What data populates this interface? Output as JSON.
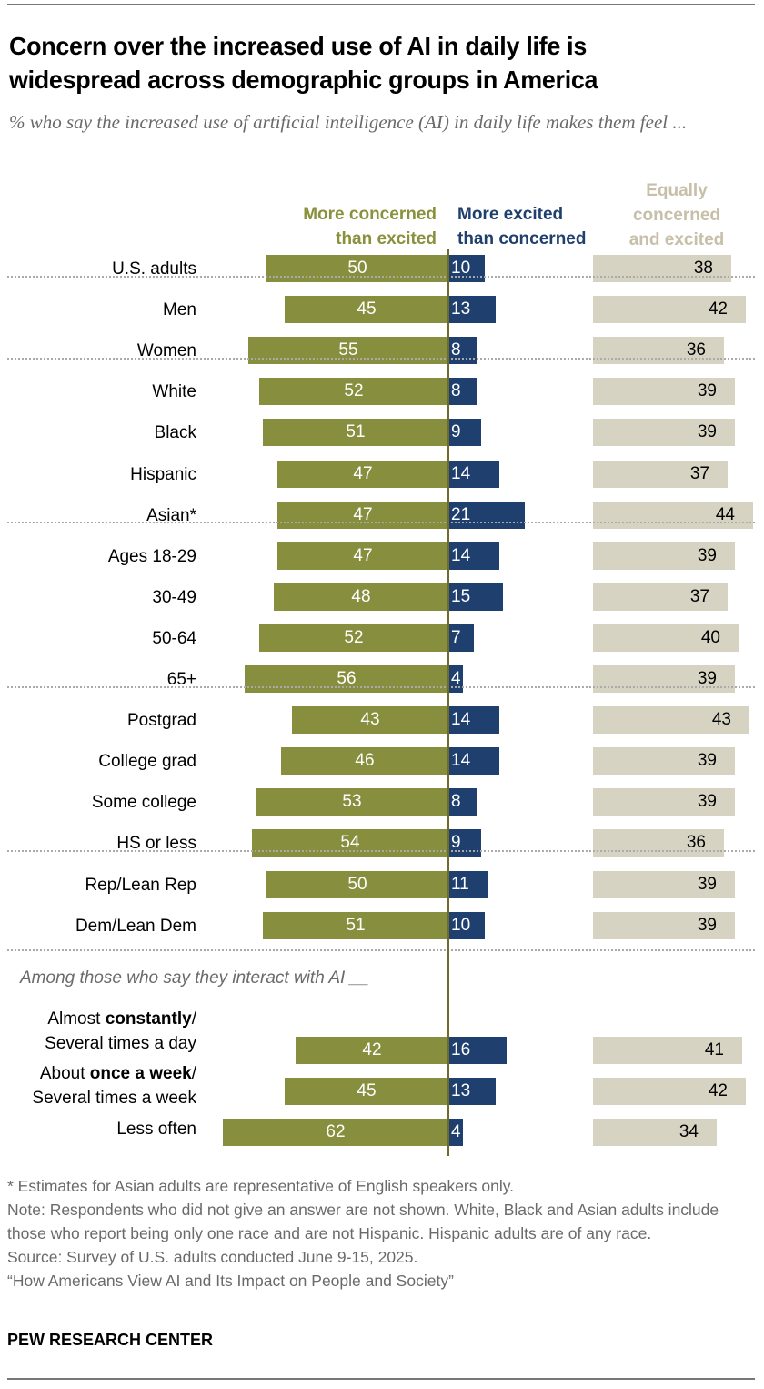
{
  "chart_data": {
    "type": "bar",
    "title": "Concern over the increased use of AI in daily life is widespread across demographic groups in America",
    "subtitle": "% who say the increased use of artificial intelligence (AI) in daily life makes them feel ...",
    "series": [
      {
        "name": "More concerned than excited",
        "color": "#878f3e"
      },
      {
        "name": "More excited than concerned",
        "color": "#1f3f6e"
      },
      {
        "name": "Equally concerned and excited",
        "color": "#d7d3c2"
      }
    ],
    "series_headers": {
      "concerned": "More concerned\nthan excited",
      "excited": "More excited\nthan concerned",
      "equal": "Equally\nconcerned\nand excited"
    },
    "groups": [
      {
        "rows": [
          {
            "label": "U.S. adults",
            "concerned": 50,
            "excited": 10,
            "equal": 38
          }
        ]
      },
      {
        "rows": [
          {
            "label": "Men",
            "concerned": 45,
            "excited": 13,
            "equal": 42
          },
          {
            "label": "Women",
            "concerned": 55,
            "excited": 8,
            "equal": 36
          }
        ]
      },
      {
        "rows": [
          {
            "label": "White",
            "concerned": 52,
            "excited": 8,
            "equal": 39
          },
          {
            "label": "Black",
            "concerned": 51,
            "excited": 9,
            "equal": 39
          },
          {
            "label": "Hispanic",
            "concerned": 47,
            "excited": 14,
            "equal": 37
          },
          {
            "label": "Asian*",
            "concerned": 47,
            "excited": 21,
            "equal": 44
          }
        ]
      },
      {
        "rows": [
          {
            "label": "Ages 18-29",
            "concerned": 47,
            "excited": 14,
            "equal": 39
          },
          {
            "label": "30-49",
            "concerned": 48,
            "excited": 15,
            "equal": 37
          },
          {
            "label": "50-64",
            "concerned": 52,
            "excited": 7,
            "equal": 40
          },
          {
            "label": "65+",
            "concerned": 56,
            "excited": 4,
            "equal": 39
          }
        ]
      },
      {
        "rows": [
          {
            "label": "Postgrad",
            "concerned": 43,
            "excited": 14,
            "equal": 43
          },
          {
            "label": "College grad",
            "concerned": 46,
            "excited": 14,
            "equal": 39
          },
          {
            "label": "Some college",
            "concerned": 53,
            "excited": 8,
            "equal": 39
          },
          {
            "label": "HS or less",
            "concerned": 54,
            "excited": 9,
            "equal": 36
          }
        ]
      },
      {
        "rows": [
          {
            "label": "Rep/Lean Rep",
            "concerned": 50,
            "excited": 11,
            "equal": 39
          },
          {
            "label": "Dem/Lean Dem",
            "concerned": 51,
            "excited": 10,
            "equal": 39
          }
        ]
      }
    ],
    "interaction_section": {
      "heading": "Among those who say they interact with AI __",
      "rows": [
        {
          "label_parts": [
            [
              "Almost ",
              false
            ],
            [
              "constantly",
              true
            ],
            [
              "/",
              false
            ],
            [
              "\nSeveral times a day",
              false
            ]
          ],
          "concerned": 42,
          "excited": 16,
          "equal": 41
        },
        {
          "label_parts": [
            [
              "About ",
              false
            ],
            [
              "once a week",
              true
            ],
            [
              "/",
              false
            ],
            [
              "\nSeveral times a week",
              false
            ]
          ],
          "concerned": 45,
          "excited": 13,
          "equal": 42
        },
        {
          "label_parts": [
            [
              "Less often",
              false
            ]
          ],
          "concerned": 62,
          "excited": 4,
          "equal": 34
        }
      ]
    }
  },
  "notes": [
    "* Estimates for Asian adults are representative of English speakers only.",
    "Note: Respondents who did not give an answer are not shown. White, Black and Asian adults include those who report being only one race and are not Hispanic. Hispanic adults are of any race.",
    "Source: Survey of U.S. adults conducted June 9-15, 2025.",
    "“How Americans View AI and Its Impact on People and Society”"
  ],
  "brand": "PEW RESEARCH CENTER"
}
